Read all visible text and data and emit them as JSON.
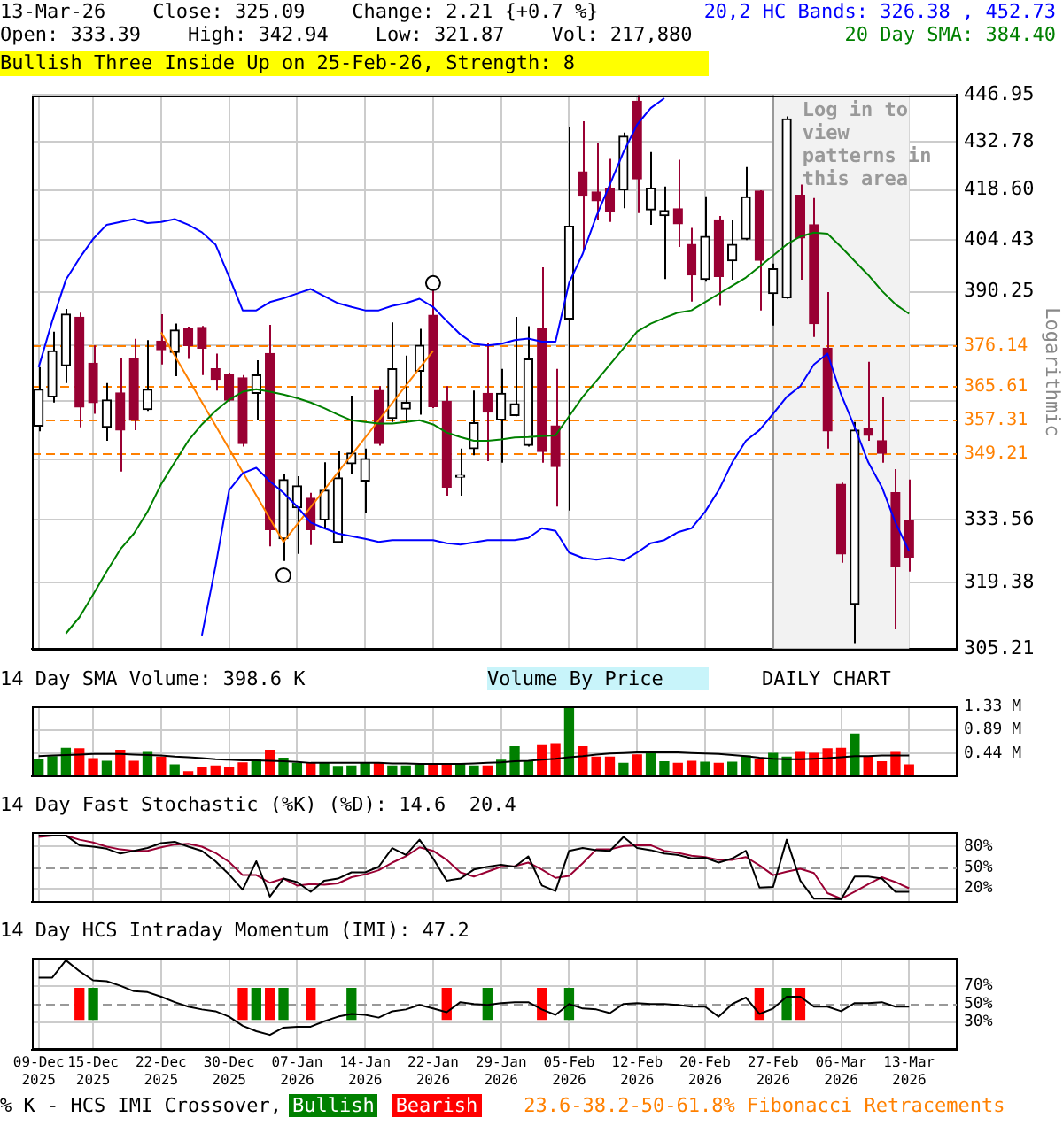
{
  "chart_data": [
    {
      "type": "candlestick",
      "title": "13-Mar-26    Close: 325.09    Change: 2.21 {+0.7 %}",
      "subtitle": "Open: 333.39    High: 342.94    Low: 321.87    Vol: 217,880",
      "ylabel": "Logarithmic",
      "categories": [
        "09-Dec\n2025",
        null,
        null,
        null,
        "15-Dec\n2025",
        null,
        null,
        null,
        null,
        "22-Dec\n2025",
        null,
        null,
        null,
        null,
        "30-Dec\n2025",
        null,
        null,
        null,
        null,
        "07-Jan\n2026",
        null,
        null,
        null,
        null,
        "14-Jan\n2026",
        null,
        null,
        null,
        null,
        "22-Jan\n2026",
        null,
        null,
        null,
        null,
        "29-Jan\n2026",
        null,
        null,
        null,
        null,
        "05-Feb\n2026",
        null,
        null,
        null,
        null,
        "12-Feb\n2026",
        null,
        null,
        null,
        null,
        "20-Feb\n2026",
        null,
        null,
        null,
        null,
        "27-Feb\n2026",
        null,
        null,
        null,
        null,
        "06-Mar\n2026",
        null,
        null,
        null,
        null,
        "13-Mar\n2026",
        null,
        null,
        null
      ],
      "ohlc": [
        [
          355.8,
          370.5,
          354.5,
          364.9
        ],
        [
          363.0,
          379.7,
          361.6,
          374.7
        ],
        [
          370.9,
          385.7,
          366.5,
          384.3
        ],
        [
          383.5,
          384.7,
          355.5,
          360.5
        ],
        [
          371.5,
          376.1,
          358.8,
          361.6
        ],
        [
          355.5,
          366.5,
          352.2,
          362.2
        ],
        [
          364.0,
          372.9,
          344.8,
          354.8
        ],
        [
          372.6,
          377.8,
          354.8,
          357.2
        ],
        [
          359.9,
          377.5,
          359.5,
          364.9
        ],
        [
          377.2,
          384.3,
          371.2,
          375.0
        ],
        [
          374.3,
          381.8,
          368.2,
          380.1
        ],
        [
          380.4,
          381.0,
          372.6,
          376.1
        ],
        [
          380.8,
          381.2,
          368.5,
          375.4
        ],
        [
          370.1,
          374.0,
          364.6,
          367.4
        ],
        [
          368.7,
          369.1,
          361.8,
          362.2
        ],
        [
          367.8,
          368.5,
          350.8,
          351.5
        ],
        [
          363.9,
          372.3,
          357.2,
          368.5
        ],
        [
          374.0,
          381.5,
          327.5,
          331.3
        ],
        [
          329.2,
          344.2,
          324.2,
          342.9
        ],
        [
          336.3,
          343.7,
          325.8,
          341.4
        ],
        [
          338.5,
          339.8,
          327.8,
          331.3
        ],
        [
          333.5,
          347.0,
          331.7,
          340.4
        ],
        [
          328.4,
          349.6,
          328.4,
          343.3
        ],
        [
          346.7,
          363.3,
          344.2,
          349.2
        ],
        [
          342.6,
          350.3,
          335.0,
          347.9
        ],
        [
          364.6,
          365.7,
          351.0,
          351.5
        ],
        [
          357.7,
          382.1,
          356.8,
          370.1
        ],
        [
          360.0,
          373.5,
          356.5,
          361.6
        ],
        [
          369.5,
          380.4,
          358.6,
          376.1
        ],
        [
          384.0,
          391.0,
          360.2,
          360.6
        ],
        [
          361.9,
          365.7,
          339.1,
          341.1
        ],
        [
          343.5,
          350.3,
          339.1,
          343.9
        ],
        [
          350.3,
          364.6,
          348.7,
          356.6
        ],
        [
          363.9,
          376.8,
          347.3,
          359.2
        ],
        [
          357.3,
          370.1,
          346.9,
          363.9
        ],
        [
          358.4,
          383.6,
          358.2,
          361.3
        ],
        [
          351.1,
          381.1,
          350.8,
          372.6
        ],
        [
          380.4,
          396.9,
          346.9,
          349.6
        ],
        [
          355.8,
          370.1,
          336.6,
          346.0
        ],
        [
          383.0,
          437.0,
          335.7,
          408.3
        ],
        [
          423.9,
          438.9,
          401.7,
          417.1
        ],
        [
          418.0,
          432.5,
          410.0,
          415.5
        ],
        [
          419.1,
          427.7,
          409.5,
          412.4
        ],
        [
          418.6,
          435.5,
          413.4,
          434.4
        ],
        [
          445.0,
          446.9,
          412.0,
          421.8
        ],
        [
          412.9,
          429.7,
          408.7,
          419.1
        ],
        [
          411.3,
          419.6,
          393.7,
          412.7
        ],
        [
          413.2,
          427.4,
          402.5,
          409.0
        ],
        [
          403.2,
          407.8,
          387.6,
          394.8
        ],
        [
          393.6,
          416.8,
          393.0,
          405.4
        ],
        [
          410.1,
          411.2,
          386.5,
          394.4
        ],
        [
          398.7,
          410.1,
          393.5,
          403.2
        ],
        [
          404.7,
          425.3,
          404.4,
          416.6
        ],
        [
          418.3,
          418.5,
          385.3,
          398.8
        ],
        [
          389.8,
          397.9,
          381.3,
          396.5
        ],
        [
          388.7,
          440.4,
          388.4,
          439.6
        ],
        [
          417.1,
          420.2,
          393.5,
          405.0
        ],
        [
          408.7,
          416.3,
          378.3,
          381.8
        ],
        [
          375.4,
          390.2,
          350.3,
          354.6
        ],
        [
          341.8,
          342.2,
          323.8,
          325.8
        ],
        [
          314.7,
          356.8,
          306.4,
          354.8
        ],
        [
          355.1,
          371.9,
          352.2,
          353.5
        ],
        [
          352.2,
          363.1,
          346.9,
          349.2
        ],
        [
          339.8,
          345.4,
          309.3,
          322.9
        ],
        [
          333.39,
          342.94,
          321.87,
          325.09
        ],
        null,
        null,
        null
      ],
      "colors": [
        "#000000",
        "#000000",
        "#000000",
        "#990033",
        "#990033",
        "#000000",
        "#990033",
        "#990033",
        "#000000",
        "#990033",
        "#000000",
        "#990033",
        "#990033",
        "#990033",
        "#990033",
        "#990033",
        "#000000",
        "#990033",
        "#000000",
        "#000000",
        "#990033",
        "#000000",
        "#000000",
        "#000000",
        "#000000",
        "#990033",
        "#000000",
        "#000000",
        "#000000",
        "#990033",
        "#990033",
        "#000000",
        "#000000",
        "#990033",
        "#000000",
        "#000000",
        "#000000",
        "#990033",
        "#990033",
        "#000000",
        "#990033",
        "#990033",
        "#990033",
        "#000000",
        "#990033",
        "#000000",
        "#000000",
        "#990033",
        "#990033",
        "#000000",
        "#990033",
        "#000000",
        "#000000",
        "#990033",
        "#000000",
        "#000000",
        "#990033",
        "#990033",
        "#990033",
        "#990033",
        "#000000",
        "#990033",
        "#990033",
        "#990033",
        "#990033",
        null,
        null,
        null
      ],
      "series": [
        {
          "type": "line",
          "name": "20,2 HC Bands: 326.38 , 452.73",
          "color": "#0000ff",
          "values": [
            370.5,
            382.5,
            393.5,
            399.4,
            404.7,
            408.7,
            409.5,
            410.3,
            409.2,
            409.5,
            410.3,
            408.7,
            406.6,
            403.2,
            394.3,
            385.3,
            385.3,
            387.5,
            388.5,
            389.8,
            391.0,
            389.1,
            387.2,
            386.2,
            385.3,
            385.3,
            386.5,
            387.2,
            388.4,
            386.2,
            382.5,
            379.0,
            376.5,
            376.1,
            376.5,
            377.5,
            377.9,
            377.1,
            377.1,
            392.7,
            400.6,
            411.1,
            420.2,
            429.7,
            437.9,
            442.9,
            445.9,
            null,
            null,
            null,
            null,
            null,
            null,
            null,
            null,
            null,
            null,
            null,
            null,
            null,
            null,
            null,
            null,
            null,
            null,
            null,
            null,
            null
          ]
        },
        {
          "type": "line",
          "color": "#0000ff",
          "values": [
            null,
            null,
            null,
            null,
            null,
            null,
            null,
            null,
            null,
            null,
            null,
            null,
            308.0,
            323.0,
            340.4,
            344.4,
            345.7,
            342.5,
            339.8,
            336.6,
            332.9,
            331.6,
            330.4,
            329.8,
            329.2,
            328.5,
            328.9,
            328.9,
            328.9,
            328.9,
            328.2,
            327.9,
            328.4,
            328.9,
            328.9,
            328.9,
            329.4,
            331.6,
            331.0,
            326.1,
            324.9,
            324.5,
            324.9,
            324.3,
            326.1,
            328.2,
            328.9,
            330.7,
            331.6,
            335.4,
            340.4,
            347.0,
            352.2,
            354.8,
            358.8,
            363.0,
            365.7,
            371.2,
            374.0,
            363.6,
            355.5,
            347.0,
            341.1,
            332.9,
            326.4,
            null,
            null,
            null
          ]
        },
        {
          "type": "line",
          "name": "20 Day SMA: 384.40",
          "color": "#008000",
          "values": [
            null,
            null,
            308.4,
            311.9,
            316.8,
            321.9,
            326.8,
            330.4,
            335.4,
            341.8,
            347.0,
            352.2,
            356.2,
            359.5,
            362.3,
            364.3,
            364.9,
            364.3,
            363.6,
            362.7,
            361.6,
            360.2,
            358.6,
            357.2,
            356.8,
            356.4,
            356.4,
            356.8,
            357.2,
            356.2,
            354.2,
            353.1,
            352.2,
            352.2,
            352.5,
            353.0,
            353.1,
            353.3,
            353.5,
            358.2,
            363.0,
            367.0,
            371.2,
            375.4,
            379.7,
            381.8,
            383.3,
            384.7,
            385.3,
            387.5,
            389.7,
            391.9,
            394.1,
            397.1,
            400.1,
            403.2,
            405.4,
            406.5,
            406.2,
            402.5,
            398.6,
            394.8,
            390.5,
            386.9,
            384.4,
            null,
            null,
            null
          ]
        },
        {
          "type": "line",
          "color": "#ff8000",
          "values": [
            null,
            null,
            null,
            null,
            null,
            null,
            null,
            null,
            null,
            379.5,
            null,
            null,
            null,
            null,
            null,
            null,
            null,
            null,
            328.5,
            null,
            null,
            null,
            null,
            null,
            null,
            null,
            null,
            null,
            null,
            374.7,
            null,
            null,
            null,
            null,
            null,
            null,
            null,
            null,
            null,
            null,
            null,
            null,
            null,
            null,
            null,
            null,
            null,
            null,
            null,
            null,
            null,
            null,
            null,
            null,
            null,
            null,
            null,
            null,
            null,
            null,
            null,
            null,
            null,
            null,
            null,
            null,
            null,
            null
          ]
        },
        {
          "type": "scatter",
          "marker": "circle",
          "color": "#000000",
          "values": [
            null,
            null,
            null,
            null,
            null,
            null,
            null,
            null,
            null,
            null,
            null,
            null,
            null,
            null,
            null,
            null,
            null,
            null,
            321.0,
            null,
            null,
            null,
            null,
            null,
            null,
            null,
            null,
            null,
            null,
            392.6,
            null,
            null,
            null,
            null,
            null,
            null,
            null,
            null,
            null,
            null,
            null,
            null,
            null,
            null,
            null,
            null,
            null,
            null,
            null,
            null,
            null,
            null,
            null,
            null,
            null,
            null,
            null,
            null,
            null,
            null,
            null,
            null,
            null,
            null,
            null,
            null,
            null,
            null
          ]
        }
      ],
      "log": true,
      "ylim": [
        305.21,
        446.95
      ],
      "yticks": [
        305.21,
        319.38,
        333.56,
        {
          "value": 347.73,
          "label": null
        },
        {
          "value": 361.9,
          "label": null
        },
        {
          "value": 376.07,
          "label": null
        },
        390.25,
        404.43,
        {
          "value": 418.6,
          "label": "418.60"
        },
        432.78,
        446.95
      ],
      "grid": true,
      "legend": "top right",
      "tick_labels": "y",
      "ref_lines": [
        {
          "axis": "y",
          "value": 376.14,
          "label": "376.14",
          "color": "#ff8000",
          "line_style": "dashed"
        },
        {
          "axis": "y",
          "value": 365.61,
          "label": "365.61",
          "color": "#ff8000",
          "line_style": "dashed"
        },
        {
          "axis": "y",
          "value": 357.31,
          "label": "357.31",
          "color": "#ff8000",
          "line_style": "dashed"
        },
        {
          "axis": "y",
          "value": 349.21,
          "label": "349.21",
          "color": "#ff8000",
          "line_style": "dashed"
        }
      ],
      "bands": [
        {
          "axis": "x",
          "from": "27-Feb\n2026",
          "to": "13-Mar\n2026",
          "label": "Log in to view patterns in this area",
          "color": "#f2f2f2"
        }
      ],
      "annotations": [
        "Bullish Three Inside Up on 25-Feb-26, Strength: 8",
        "23.6-38.2-50-61.8% Fibonacci Retracements"
      ]
    },
    {
      "type": "bar",
      "title": "14 Day SMA Volume: 398.6 K",
      "annotations": [
        "Volume By Price",
        "DAILY CHART"
      ],
      "categories": [
        "09-Dec\n2025",
        null,
        null,
        null,
        "15-Dec\n2025",
        null,
        null,
        null,
        null,
        "22-Dec\n2025",
        null,
        null,
        null,
        null,
        "30-Dec\n2025",
        null,
        null,
        null,
        null,
        "07-Jan\n2026",
        null,
        null,
        null,
        null,
        "14-Jan\n2026",
        null,
        null,
        null,
        null,
        "22-Jan\n2026",
        null,
        null,
        null,
        null,
        "29-Jan\n2026",
        null,
        null,
        null,
        null,
        "05-Feb\n2026",
        null,
        null,
        null,
        null,
        "12-Feb\n2026",
        null,
        null,
        null,
        null,
        "20-Feb\n2026",
        null,
        null,
        null,
        null,
        "27-Feb\n2026",
        null,
        null,
        null,
        null,
        "06-Mar\n2026",
        null,
        null,
        null,
        null,
        "13-Mar\n2026",
        null,
        null,
        null
      ],
      "series": [
        {
          "type": "bar",
          "colors": [
            "#008000",
            "#008000",
            "#008000",
            "#ff0000",
            "#ff0000",
            "#008000",
            "#ff0000",
            "#ff0000",
            "#008000",
            "#ff0000",
            "#008000",
            "#ff0000",
            "#ff0000",
            "#ff0000",
            "#ff0000",
            "#ff0000",
            "#008000",
            "#ff0000",
            "#008000",
            "#008000",
            "#ff0000",
            "#008000",
            "#008000",
            "#008000",
            "#008000",
            "#ff0000",
            "#008000",
            "#008000",
            "#008000",
            "#ff0000",
            "#ff0000",
            "#008000",
            "#008000",
            "#ff0000",
            "#008000",
            "#008000",
            "#008000",
            "#ff0000",
            "#ff0000",
            "#008000",
            "#ff0000",
            "#ff0000",
            "#ff0000",
            "#008000",
            "#ff0000",
            "#008000",
            "#008000",
            "#ff0000",
            "#ff0000",
            "#008000",
            "#ff0000",
            "#008000",
            "#008000",
            "#ff0000",
            "#008000",
            "#008000",
            "#ff0000",
            "#ff0000",
            "#ff0000",
            "#ff0000",
            "#008000",
            "#ff0000",
            "#ff0000",
            "#ff0000",
            "#ff0000",
            null,
            null,
            null
          ],
          "values": [
            0.32,
            0.38,
            0.54,
            0.53,
            0.34,
            0.29,
            0.5,
            0.29,
            0.46,
            0.37,
            0.22,
            0.09,
            0.16,
            0.2,
            0.18,
            0.26,
            0.33,
            0.5,
            0.35,
            0.25,
            0.25,
            0.25,
            0.19,
            0.2,
            0.26,
            0.25,
            0.2,
            0.2,
            0.22,
            0.22,
            0.22,
            0.24,
            0.2,
            0.2,
            0.31,
            0.57,
            0.29,
            0.59,
            0.63,
            1.33,
            0.57,
            0.37,
            0.37,
            0.25,
            0.41,
            0.46,
            0.28,
            0.25,
            0.29,
            0.27,
            0.25,
            0.27,
            0.39,
            0.32,
            0.44,
            0.37,
            0.46,
            0.44,
            0.53,
            0.54,
            0.81,
            0.37,
            0.28,
            0.46,
            0.22,
            null,
            null,
            null
          ]
        },
        {
          "type": "line",
          "color": "#000000",
          "values": [
            0.39,
            0.4,
            0.41,
            0.42,
            0.43,
            0.43,
            0.43,
            0.42,
            0.41,
            0.4,
            0.38,
            0.37,
            0.35,
            0.33,
            0.32,
            0.31,
            0.31,
            0.3,
            0.29,
            0.28,
            0.26,
            0.26,
            0.26,
            0.26,
            0.26,
            0.26,
            0.25,
            0.25,
            0.24,
            0.24,
            0.24,
            0.24,
            0.25,
            0.26,
            0.27,
            0.29,
            0.3,
            0.32,
            0.34,
            0.37,
            0.39,
            0.42,
            0.44,
            0.45,
            0.46,
            0.46,
            0.46,
            0.46,
            0.45,
            0.44,
            0.43,
            0.41,
            0.39,
            0.36,
            0.34,
            0.33,
            0.33,
            0.34,
            0.35,
            0.37,
            0.39,
            0.39,
            0.4,
            0.4,
            0.4,
            null,
            null,
            null
          ]
        }
      ],
      "ylim": [
        0,
        1.33
      ],
      "yticks": [
        {
          "value": 0.44,
          "label": "0.44 M"
        },
        {
          "value": 0.89,
          "label": "0.89 M"
        },
        {
          "value": 1.33,
          "label": "1.33 M"
        }
      ],
      "grid": true,
      "tick_labels": "y"
    },
    {
      "type": "line",
      "title": "14 Day Fast Stochastic (%K) (%D): 14.6  20.4",
      "categories": [
        "09-Dec\n2025",
        null,
        null,
        null,
        "15-Dec\n2025",
        null,
        null,
        null,
        null,
        "22-Dec\n2025",
        null,
        null,
        null,
        null,
        "30-Dec\n2025",
        null,
        null,
        null,
        null,
        "07-Jan\n2026",
        null,
        null,
        null,
        null,
        "14-Jan\n2026",
        null,
        null,
        null,
        null,
        "22-Jan\n2026",
        null,
        null,
        null,
        null,
        "29-Jan\n2026",
        null,
        null,
        null,
        null,
        "05-Feb\n2026",
        null,
        null,
        null,
        null,
        "12-Feb\n2026",
        null,
        null,
        null,
        null,
        "20-Feb\n2026",
        null,
        null,
        null,
        null,
        "27-Feb\n2026",
        null,
        null,
        null,
        null,
        "06-Mar\n2026",
        null,
        null,
        null,
        null,
        "13-Mar\n2026",
        null,
        null,
        null
      ],
      "series": [
        {
          "color": "#000000",
          "values": [
            96,
            96,
            96,
            82,
            80,
            77,
            70,
            74,
            78,
            85,
            87,
            80,
            74,
            59,
            40,
            18,
            59,
            8,
            34,
            29,
            15,
            31,
            34,
            43,
            43,
            51,
            78,
            68,
            90,
            63,
            31,
            34,
            47,
            51,
            54,
            51,
            66,
            24,
            16,
            74,
            78,
            75,
            74,
            94,
            78,
            75,
            70,
            68,
            63,
            64,
            57,
            63,
            74,
            21,
            22,
            90,
            31,
            5,
            5,
            4,
            37,
            37,
            34,
            15,
            15,
            null,
            null,
            null
          ]
        },
        {
          "color": "#990033",
          "values": [
            94,
            96,
            96,
            90,
            86,
            80,
            76,
            74,
            74,
            79,
            83,
            84,
            80,
            71,
            58,
            39,
            39,
            28,
            34,
            24,
            26,
            25,
            27,
            36,
            40,
            46,
            57,
            66,
            79,
            74,
            61,
            43,
            37,
            44,
            51,
            52,
            57,
            47,
            35,
            38,
            56,
            76,
            76,
            81,
            82,
            82,
            74,
            71,
            67,
            65,
            61,
            61,
            65,
            53,
            39,
            44,
            48,
            42,
            13,
            5,
            15,
            26,
            36,
            29,
            20,
            null,
            null,
            null
          ]
        }
      ],
      "ylim": [
        0,
        100
      ],
      "yticks": [
        {
          "value": 20,
          "label": "20%"
        },
        {
          "value": 50,
          "label": "50%"
        },
        {
          "value": 80,
          "label": "80%"
        }
      ],
      "grid": true,
      "tick_labels": "y",
      "ref_lines": [
        {
          "axis": "y",
          "value": 50,
          "color": "#999999",
          "line_style": "dashed"
        }
      ]
    },
    {
      "type": "line",
      "title": "14 Day HCS Intraday Momentum (IMI): 47.2",
      "annotations": [
        "% K - HCS IMI Crossover,"
      ],
      "categories": [
        "09-Dec\n2025",
        null,
        null,
        null,
        "15-Dec\n2025",
        null,
        null,
        null,
        null,
        "22-Dec\n2025",
        null,
        null,
        null,
        null,
        "30-Dec\n2025",
        null,
        null,
        null,
        null,
        "07-Jan\n2026",
        null,
        null,
        null,
        null,
        "14-Jan\n2026",
        null,
        null,
        null,
        null,
        "22-Jan\n2026",
        null,
        null,
        null,
        null,
        "29-Jan\n2026",
        null,
        null,
        null,
        null,
        "05-Feb\n2026",
        null,
        null,
        null,
        null,
        "12-Feb\n2026",
        null,
        null,
        null,
        null,
        "20-Feb\n2026",
        null,
        null,
        null,
        null,
        "27-Feb\n2026",
        null,
        null,
        null,
        null,
        "06-Mar\n2026",
        null,
        null,
        null,
        null,
        "13-Mar\n2026",
        null,
        null,
        null
      ],
      "series": [
        {
          "color": "#000000",
          "values": [
            79,
            79,
            98,
            86,
            76,
            75,
            70,
            64,
            63,
            58,
            52,
            47,
            44,
            42,
            36,
            26,
            20,
            16,
            24,
            25,
            25,
            31,
            36,
            39,
            38,
            35,
            42,
            44,
            49,
            45,
            41,
            52,
            50,
            49,
            51,
            52,
            52,
            44,
            38,
            50,
            45,
            44,
            40,
            50,
            51,
            50,
            50,
            49,
            47,
            47,
            36,
            50,
            57,
            39,
            45,
            58,
            58,
            47,
            47,
            42,
            51,
            51,
            52,
            47,
            47,
            null,
            null,
            null
          ]
        },
        {
          "type": "bar",
          "name": "Bullish",
          "color": "#008000",
          "values": [
            null,
            null,
            null,
            null,
            34,
            null,
            null,
            null,
            null,
            null,
            null,
            null,
            null,
            null,
            null,
            null,
            34,
            null,
            34,
            null,
            null,
            null,
            null,
            34,
            null,
            null,
            null,
            null,
            null,
            null,
            null,
            null,
            null,
            34,
            null,
            null,
            null,
            null,
            null,
            34,
            null,
            null,
            null,
            null,
            null,
            null,
            null,
            null,
            null,
            null,
            null,
            null,
            null,
            null,
            null,
            34,
            null,
            null,
            null,
            null,
            null,
            null,
            null,
            null,
            null,
            null,
            null,
            null
          ],
          "base": [
            null,
            null,
            null,
            null,
            33,
            null,
            null,
            null,
            null,
            null,
            null,
            null,
            null,
            null,
            null,
            null,
            33,
            null,
            33,
            null,
            null,
            null,
            null,
            33,
            null,
            null,
            null,
            null,
            null,
            null,
            null,
            null,
            null,
            33,
            null,
            null,
            null,
            null,
            null,
            33,
            null,
            null,
            null,
            null,
            null,
            null,
            null,
            null,
            null,
            null,
            null,
            null,
            null,
            null,
            null,
            33,
            null,
            null,
            null,
            null,
            null,
            null,
            null,
            null,
            null,
            null,
            null,
            null
          ]
        },
        {
          "type": "bar",
          "name": "Bearish",
          "color": "#ff0000",
          "values": [
            null,
            null,
            null,
            34,
            null,
            null,
            null,
            null,
            null,
            null,
            null,
            null,
            null,
            null,
            null,
            34,
            null,
            34,
            null,
            null,
            34,
            null,
            null,
            null,
            null,
            null,
            null,
            null,
            null,
            null,
            34,
            null,
            null,
            null,
            null,
            null,
            null,
            34,
            null,
            null,
            null,
            null,
            null,
            null,
            null,
            null,
            null,
            null,
            null,
            null,
            null,
            null,
            null,
            34,
            null,
            null,
            34,
            null,
            null,
            null,
            null,
            null,
            null,
            null,
            null,
            null,
            null,
            null
          ],
          "base": [
            null,
            null,
            null,
            33,
            null,
            null,
            null,
            null,
            null,
            null,
            null,
            null,
            null,
            null,
            null,
            33,
            null,
            33,
            null,
            null,
            33,
            null,
            null,
            null,
            null,
            null,
            null,
            null,
            null,
            null,
            33,
            null,
            null,
            null,
            null,
            null,
            null,
            33,
            null,
            null,
            null,
            null,
            null,
            null,
            null,
            null,
            null,
            null,
            null,
            null,
            null,
            null,
            null,
            33,
            null,
            null,
            33,
            null,
            null,
            null,
            null,
            null,
            null,
            null,
            null,
            null,
            null,
            null
          ]
        }
      ],
      "ylim": [
        0,
        100
      ],
      "yticks": [
        {
          "value": 30,
          "label": "30%"
        },
        {
          "value": 50,
          "label": "50%"
        },
        {
          "value": 70,
          "label": "70%"
        }
      ],
      "grid": true,
      "legend": "bottom",
      "ref_lines": [
        {
          "axis": "y",
          "value": 50,
          "color": "#999999",
          "line_style": "dashed"
        }
      ]
    }
  ]
}
